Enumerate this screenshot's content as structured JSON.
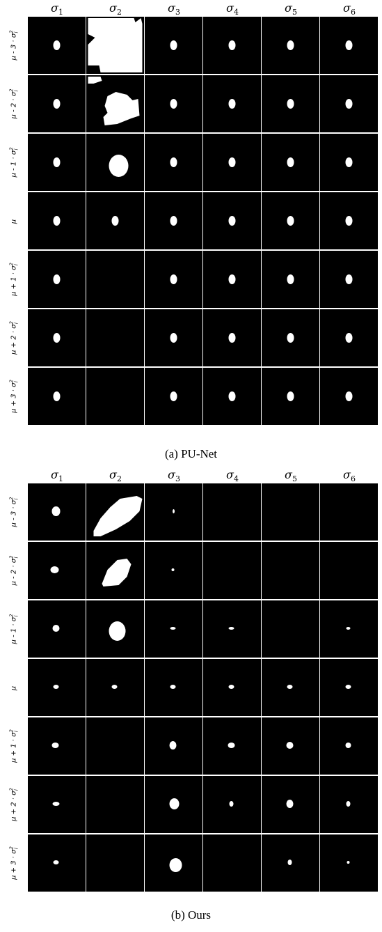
{
  "columns": [
    "σ",
    "σ",
    "σ",
    "σ",
    "σ",
    "σ"
  ],
  "column_subscripts": [
    "1",
    "2",
    "3",
    "4",
    "5",
    "6"
  ],
  "rows": [
    "μ + 3 · σ²",
    "μ + 2 · σ²",
    "μ + 1 · σ²",
    "μ",
    "μ - 1 · σ²",
    "μ - 2 · σ²",
    "μ - 3 · σ²"
  ],
  "row_labels": [
    "μ - 3 · σ",
    "μ - 2 · σ",
    "μ - 1 · σ",
    "μ",
    "μ + 1 · σ",
    "μ + 2 · σ",
    "μ + 3 · σ"
  ],
  "row_sups": [
    "2/i",
    "2/i",
    "2/i",
    "",
    "2/i",
    "2/i",
    "2/i"
  ],
  "panels": [
    {
      "caption": "(a) PU-Net"
    },
    {
      "caption": "(b) Ours"
    }
  ]
}
